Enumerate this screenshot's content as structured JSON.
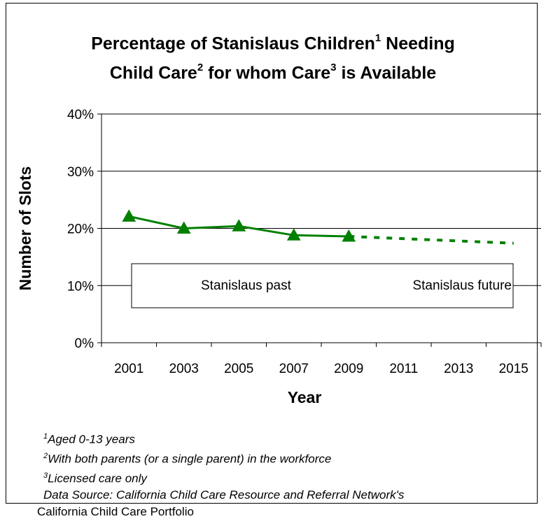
{
  "title": {
    "line1_a": "Percentage of Stanislaus Children",
    "line1_sup": "1",
    "line1_b": " Needing",
    "line2_a": "Child Care",
    "line2_sup1": "2",
    "line2_b": " for whom Care",
    "line2_sup2": "3",
    "line2_c": " is Available"
  },
  "chart_data": {
    "type": "line",
    "xlabel": "Year",
    "ylabel": "Number of Slots",
    "categories": [
      "2001",
      "2003",
      "2005",
      "2007",
      "2009",
      "2011",
      "2013",
      "2015"
    ],
    "y_ticks": [
      "0%",
      "10%",
      "20%",
      "30%",
      "40%"
    ],
    "ylim": [
      0,
      40
    ],
    "grid": true,
    "series": [
      {
        "name": "Stanislaus past",
        "style": "solid-triangle-markers",
        "color": "#008000",
        "x": [
          "2001",
          "2003",
          "2005",
          "2007",
          "2009"
        ],
        "values": [
          22.1,
          20.0,
          20.4,
          18.8,
          18.6
        ]
      },
      {
        "name": "Stanislaus future",
        "style": "dotted",
        "color": "#008000",
        "x": [
          "2009",
          "2015"
        ],
        "values": [
          18.6,
          17.4
        ]
      }
    ],
    "legend_position": "inside-lower"
  },
  "footnotes": {
    "n1_sup": "1",
    "n1": "Aged 0-13 years",
    "n2_sup": "2",
    "n2": "With both parents (or a single parent) in the workforce",
    "n3_sup": "3",
    "n3": "Licensed care only",
    "source": "Data Source: California Child Care Resource and Referral Network's",
    "portfolio": "California Child Care Portfolio"
  }
}
